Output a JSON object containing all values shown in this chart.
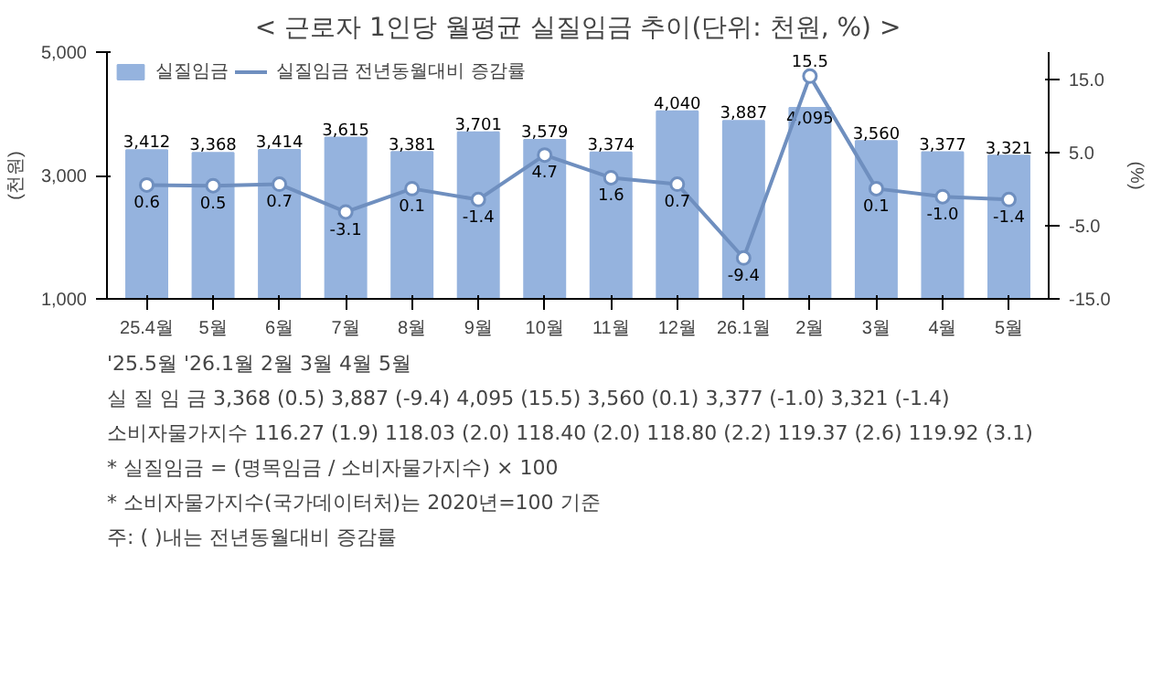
{
  "chart_data": [
    {
      "type": "bar",
      "title": "< 근로자 1인당 월평균 실질임금 추이(단위: 천원, %) >",
      "ylabel": "(천원)",
      "y2label": "(%)",
      "categories": [
        "25.4월",
        "5월",
        "6월",
        "7월",
        "8월",
        "9월",
        "10월",
        "11월",
        "12월",
        "26.1월",
        "2월",
        "3월",
        "4월",
        "5월"
      ],
      "series": [
        {
          "name": "실질임금",
          "type": "bar",
          "color": "#95b3de",
          "values": [
            3412,
            3368,
            3414,
            3615,
            3381,
            3701,
            3579,
            3374,
            4040,
            3887,
            4095,
            3560,
            3377,
            3321
          ],
          "value_labels": [
            "3,412",
            "3,368",
            "3,414",
            "3,615",
            "3,381",
            "3,701",
            "3,579",
            "3,374",
            "4,040",
            "3,887",
            "4,095",
            "3,560",
            "3,377",
            "3,321"
          ]
        },
        {
          "name": "실질임금 전년동월대비 증감률",
          "type": "line",
          "axis": "y2",
          "color": "#6f8fbf",
          "marker": "circle",
          "values": [
            0.6,
            0.5,
            0.7,
            -3.1,
            0.1,
            -1.4,
            4.7,
            1.6,
            0.7,
            -9.4,
            15.5,
            0.1,
            -1.0,
            -1.4
          ],
          "value_labels": [
            "0.6",
            "0.5",
            "0.7",
            "-3.1",
            "0.1",
            "-1.4",
            "4.7",
            "1.6",
            "0.7",
            "-9.4",
            "15.5",
            "0.1",
            "-1.0",
            "-1.4"
          ]
        }
      ],
      "ylim": [
        1000,
        5000
      ],
      "yticks": [
        {
          "value": 1000,
          "label": "1,000"
        },
        {
          "value": 3000,
          "label": "3,000"
        },
        {
          "value": 5000,
          "label": "5,000"
        }
      ],
      "y2lim": [
        -15,
        18.8
      ],
      "y2ticks": [
        {
          "value": -15,
          "label": "-15.0"
        },
        {
          "value": -5,
          "label": "-5.0"
        },
        {
          "value": 5,
          "label": "5.0"
        },
        {
          "value": 15,
          "label": "15.0"
        }
      ],
      "grid": false,
      "legend": "top left"
    },
    {
      "type": "other",
      "annotations": [
        "'25.5월      '26.1월      2월      3월      4월      5월",
        "실 질 임 금   3,368 (0.5)   3,887 (-9.4)   4,095 (15.5)   3,560 (0.1)   3,377 (-1.0)   3,321 (-1.4)",
        "소비자물가지수   116.27 (1.9)   118.03 (2.0)   118.40 (2.0)   118.80 (2.2)   119.37 (2.6)   119.92 (3.1)",
        "* 실질임금 = (명목임금 / 소비자물가지수) × 100",
        "* 소비자물가지수(국가데이터처)는 2020년=100 기준",
        "주: (   )내는 전년동월대비 증감률"
      ]
    }
  ]
}
